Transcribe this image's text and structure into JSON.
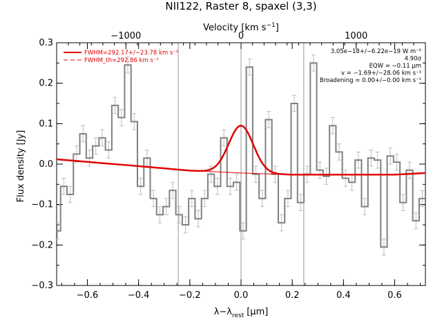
{
  "chart_data": {
    "type": "line",
    "title": "NII122, Raster 8, spaxel (3,3)",
    "xlabel": "λ−λ_rest [μm]",
    "xlabel_main": "λ−λ",
    "xlabel_sub": "rest",
    "xlabel_unit": "[μm]",
    "ylabel": "Flux density [Jy]",
    "top_axis_label": "Velocity [km s⁻¹]",
    "top_axis_label_main": "Velocity [km s",
    "top_axis_label_sup": "−1",
    "top_axis_label_end": "]",
    "xlim": [
      -0.72,
      0.72
    ],
    "ylim": [
      -0.3,
      0.3
    ],
    "x_ticks": [
      -0.6,
      -0.4,
      -0.2,
      0.0,
      0.2,
      0.4,
      0.6
    ],
    "x_tick_labels": [
      "−0.6",
      "−0.4",
      "−0.2",
      "0.0",
      "0.2",
      "0.4",
      "0.6"
    ],
    "y_ticks": [
      -0.3,
      -0.2,
      -0.1,
      0.0,
      0.1,
      0.2,
      0.3
    ],
    "y_tick_labels": [
      "−0.3",
      "−0.2",
      "−0.1",
      "0.0",
      "0.1",
      "0.2",
      "0.3"
    ],
    "top_ticks_velocity": [
      -1000,
      0,
      1000
    ],
    "top_tick_labels": [
      "−1000",
      "0",
      "1000"
    ],
    "vertical_lines_x": [
      -0.245,
      0.0,
      0.245
    ],
    "legend": {
      "placement": "top-left",
      "entries": [
        {
          "label": "FWHM=292.17+/−23.78 km s⁻¹",
          "style": "solid",
          "color": "#e00000"
        },
        {
          "label": "FWHM_th=292.86 km s⁻¹",
          "style": "dashed",
          "color": "#e00000"
        }
      ]
    },
    "annotations": [
      "3.05e−18+/−6.22e−19 W m⁻²",
      "4.90σ",
      "EQW = −0.11 μm",
      "v = −1.69+/−28.06 km s⁻¹",
      "Broadening = 0.00+/−0.00 km s⁻¹"
    ],
    "annotation_placement": "top-right",
    "spectrum": {
      "name": "data",
      "color": "#808080",
      "style": "histogram",
      "x": [
        -0.717,
        -0.692,
        -0.667,
        -0.642,
        -0.617,
        -0.592,
        -0.567,
        -0.542,
        -0.517,
        -0.492,
        -0.467,
        -0.442,
        -0.417,
        -0.392,
        -0.367,
        -0.342,
        -0.317,
        -0.292,
        -0.267,
        -0.242,
        -0.217,
        -0.192,
        -0.167,
        -0.142,
        -0.117,
        -0.092,
        -0.067,
        -0.042,
        -0.017,
        0.008,
        0.033,
        0.058,
        0.083,
        0.108,
        0.133,
        0.158,
        0.183,
        0.208,
        0.233,
        0.258,
        0.283,
        0.308,
        0.333,
        0.358,
        0.383,
        0.408,
        0.433,
        0.458,
        0.483,
        0.508,
        0.533,
        0.558,
        0.583,
        0.608,
        0.633,
        0.658,
        0.683,
        0.708
      ],
      "y": [
        -0.165,
        -0.055,
        -0.075,
        0.025,
        0.075,
        0.015,
        0.045,
        0.065,
        0.035,
        0.145,
        0.115,
        0.245,
        0.105,
        -0.055,
        0.015,
        -0.085,
        -0.125,
        -0.105,
        -0.065,
        -0.125,
        -0.15,
        -0.085,
        -0.135,
        -0.085,
        -0.025,
        -0.055,
        0.065,
        -0.055,
        -0.045,
        -0.165,
        0.24,
        -0.025,
        -0.085,
        0.11,
        -0.025,
        -0.145,
        -0.085,
        0.15,
        -0.095,
        -0.025,
        0.25,
        -0.015,
        -0.03,
        0.095,
        0.03,
        -0.035,
        -0.045,
        0.01,
        -0.105,
        0.015,
        0.01,
        -0.205,
        0.02,
        0.005,
        -0.095,
        -0.015,
        -0.14,
        -0.085
      ],
      "err": [
        0.02,
        0.02,
        0.02,
        0.02,
        0.02,
        0.02,
        0.02,
        0.02,
        0.02,
        0.02,
        0.02,
        0.02,
        0.02,
        0.02,
        0.02,
        0.02,
        0.02,
        0.02,
        0.02,
        0.02,
        0.02,
        0.02,
        0.02,
        0.02,
        0.02,
        0.02,
        0.02,
        0.02,
        0.02,
        0.02,
        0.02,
        0.02,
        0.02,
        0.02,
        0.02,
        0.02,
        0.02,
        0.02,
        0.02,
        0.02,
        0.02,
        0.02,
        0.02,
        0.02,
        0.02,
        0.02,
        0.02,
        0.02,
        0.02,
        0.02,
        0.02,
        0.02,
        0.02,
        0.02,
        0.02,
        0.02,
        0.02,
        0.02
      ]
    },
    "fit": {
      "name": "fit",
      "color": "#e00000",
      "model": "gaussian_plus_baseline",
      "x": [
        -0.72,
        -0.6,
        -0.4,
        -0.2,
        -0.15,
        -0.1,
        -0.05,
        0.0,
        0.05,
        0.1,
        0.15,
        0.2,
        0.4,
        0.6,
        0.72
      ],
      "y": [
        0.012,
        0.006,
        -0.005,
        -0.016,
        -0.015,
        0.0,
        0.055,
        0.095,
        0.055,
        0.0,
        -0.022,
        -0.026,
        -0.026,
        -0.026,
        -0.022
      ]
    },
    "baseline": {
      "name": "baseline",
      "color": "#e00000",
      "x": [
        -0.72,
        -0.4,
        -0.2,
        0.0,
        0.2,
        0.4,
        0.6,
        0.72
      ],
      "y": [
        0.012,
        -0.005,
        -0.016,
        -0.022,
        -0.026,
        -0.026,
        -0.026,
        -0.022
      ]
    }
  }
}
